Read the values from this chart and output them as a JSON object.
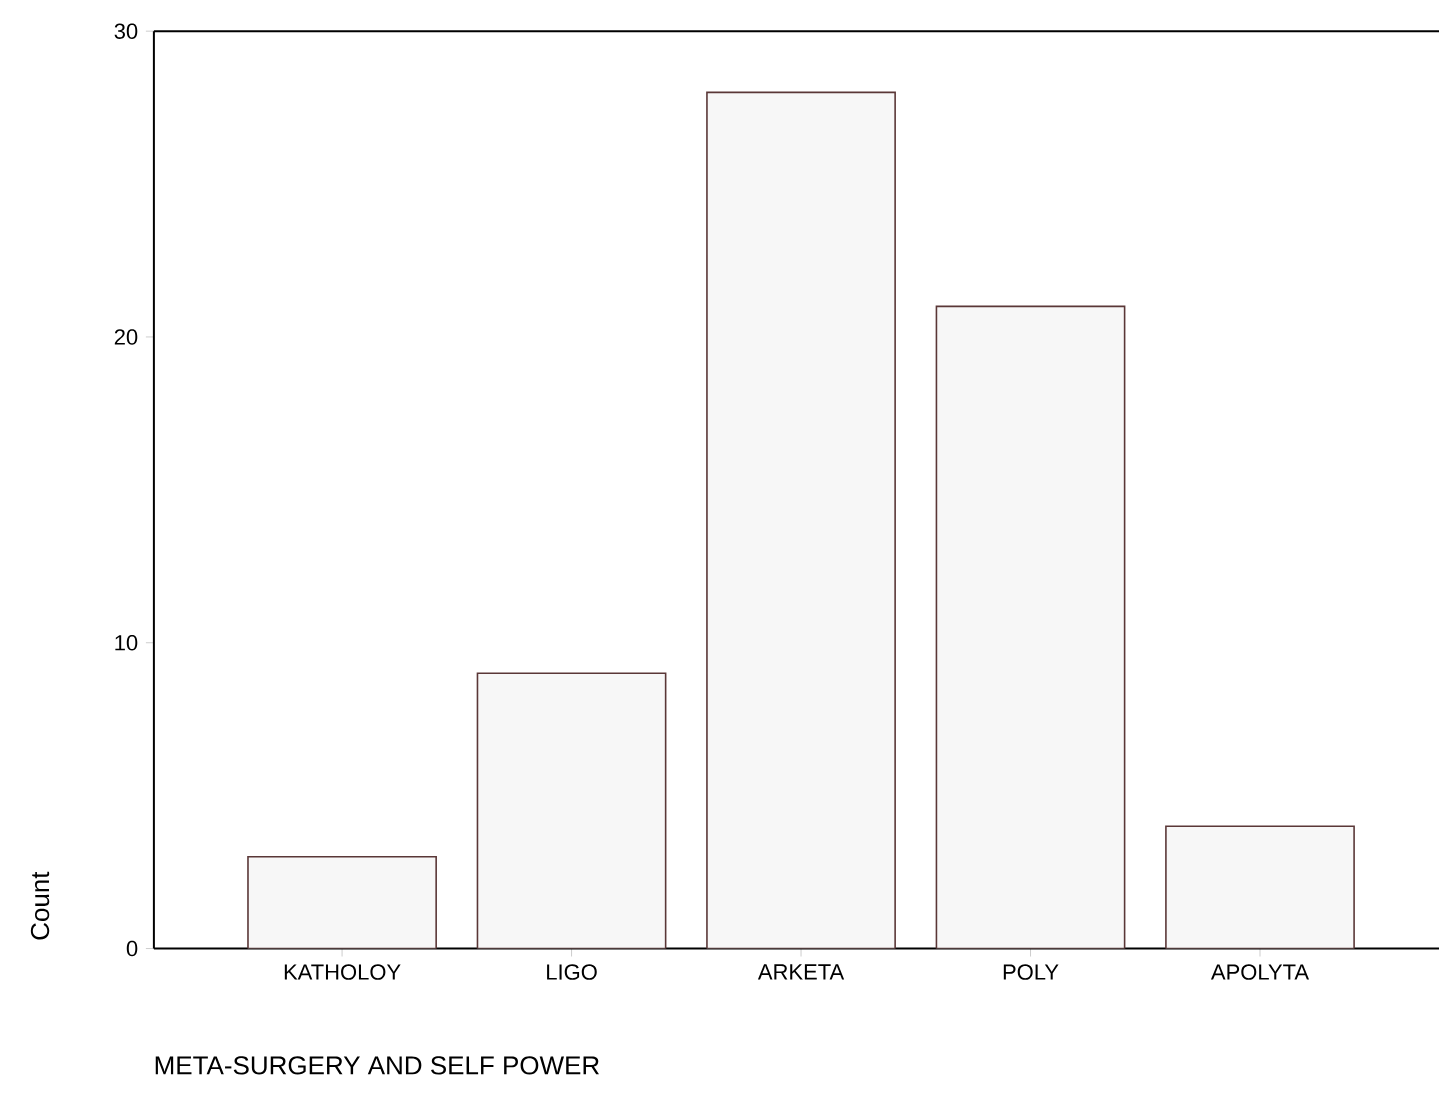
{
  "chart_data": {
    "type": "bar",
    "categories": [
      "KATHOLOY",
      "LIGO",
      "ARKETA",
      "POLY",
      "APOLYTA"
    ],
    "values": [
      3,
      9,
      28,
      21,
      4
    ],
    "color": "#f7f7f7",
    "xlabel": "META-SURGERY AND SELF POWER",
    "ylabel": "Count",
    "ylim": [
      0,
      30
    ],
    "yticks": [
      0,
      10,
      20,
      30
    ]
  }
}
